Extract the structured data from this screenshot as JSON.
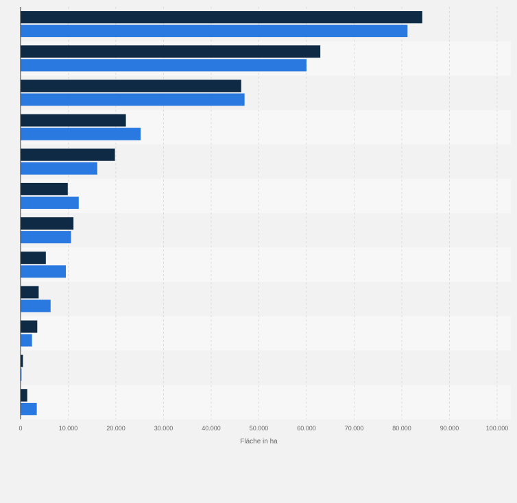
{
  "chart_data": {
    "type": "bar",
    "orientation": "horizontal",
    "categories": [
      "",
      "",
      "",
      "",
      "",
      "",
      "",
      "",
      "",
      "",
      "",
      ""
    ],
    "series": [
      {
        "color": "#0f2a45",
        "values": [
          84300,
          62900,
          46300,
          22100,
          19800,
          9900,
          11100,
          5300,
          3800,
          3500,
          500,
          1400
        ]
      },
      {
        "color": "#2979e1",
        "values": [
          81200,
          60000,
          47000,
          25200,
          16100,
          12200,
          10600,
          9500,
          6300,
          2400,
          200,
          3400
        ]
      }
    ],
    "xlabel": "Fläche in ha",
    "ylabel": "",
    "xlim": [
      0,
      100000
    ],
    "x_ticks": [
      0,
      10000,
      20000,
      30000,
      40000,
      50000,
      60000,
      70000,
      80000,
      90000,
      100000
    ],
    "x_tick_labels": [
      "0",
      "10.000",
      "20.000",
      "30.000",
      "40.000",
      "50.000",
      "60.000",
      "70.000",
      "80.000",
      "90.000",
      "100.000"
    ],
    "grid": true,
    "legend": "none"
  }
}
